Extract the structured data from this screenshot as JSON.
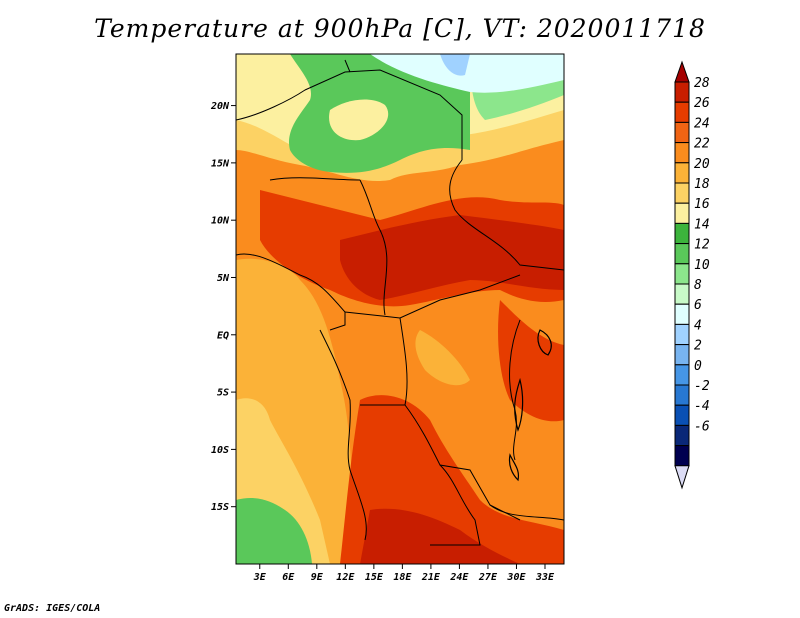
{
  "title": "Temperature at 900hPa [C], VT: 2020011718",
  "footer": "GrADS: IGES/COLA",
  "map": {
    "lat_ticks": [
      "20N",
      "15N",
      "10N",
      "5N",
      "EQ",
      "5S",
      "10S",
      "15S"
    ],
    "lat_values": [
      20,
      15,
      10,
      5,
      0,
      -5,
      -10,
      -15
    ],
    "lon_ticks": [
      "3E",
      "6E",
      "9E",
      "12E",
      "15E",
      "18E",
      "21E",
      "24E",
      "27E",
      "30E",
      "33E"
    ],
    "lon_values": [
      3,
      6,
      9,
      12,
      15,
      18,
      21,
      24,
      27,
      30,
      33
    ],
    "lat_range": [
      -20,
      24.5
    ],
    "lon_range": [
      0.5,
      35
    ]
  },
  "colorbar": {
    "labels": [
      "28",
      "26",
      "24",
      "22",
      "20",
      "18",
      "16",
      "14",
      "12",
      "10",
      "8",
      "6",
      "4",
      "2",
      "0",
      "-2",
      "-4",
      "-6"
    ],
    "colors": [
      "#a50000",
      "#c81e00",
      "#e63c00",
      "#f06414",
      "#fa8c1e",
      "#fbb238",
      "#fcd264",
      "#fcf0a0",
      "#3cb43c",
      "#5ac85a",
      "#8ce68c",
      "#c8fac8",
      "#e0ffff",
      "#a0d2ff",
      "#78b4f0",
      "#4696e6",
      "#2878d2",
      "#0a50b4",
      "#0a2878",
      "#000050",
      "#dcdcf5"
    ]
  }
}
